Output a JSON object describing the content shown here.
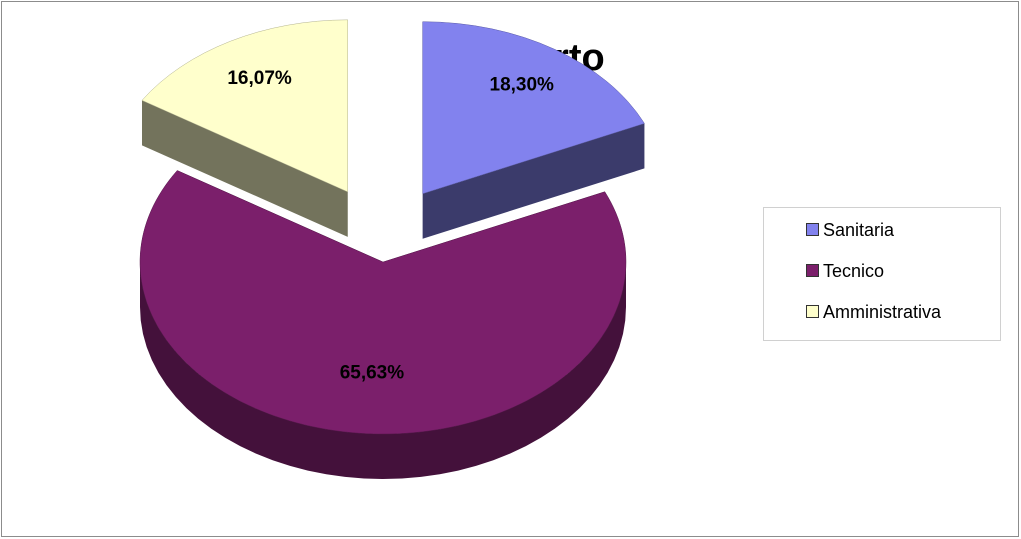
{
  "chart_data": {
    "type": "pie3d",
    "title": "Comparto",
    "categories": [
      "Sanitaria",
      "Tecnico",
      "Amministrativa"
    ],
    "values": [
      18.3,
      65.63,
      16.07
    ],
    "value_labels": [
      "18,30%",
      "65,63%",
      "16,07%"
    ],
    "colors": [
      "#8282ee",
      "#7b1f6b",
      "#ffffcc"
    ],
    "legend": "right"
  }
}
